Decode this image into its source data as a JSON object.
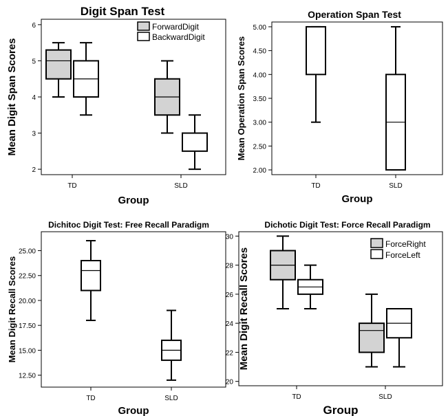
{
  "chart_data": [
    {
      "type": "boxplot",
      "title": "Digit Span Test",
      "xlabel": "Group",
      "ylabel": "Mean Digit Span Scores",
      "categories": [
        "TD",
        "SLD"
      ],
      "ylim": [
        1.85,
        6.15
      ],
      "yticks": [
        "2",
        "3",
        "4",
        "5",
        "6"
      ],
      "legend_position": "top-right",
      "series": [
        {
          "name": "ForwardDigit",
          "color": "#d3d3d3",
          "boxes": [
            {
              "min": 4,
              "q1": 4.5,
              "median": 5,
              "q3": 5.3,
              "max": 5.5
            },
            {
              "min": 3,
              "q1": 3.5,
              "median": 4,
              "q3": 4.5,
              "max": 5
            }
          ]
        },
        {
          "name": "BackwardDigit",
          "color": "#ffffff",
          "boxes": [
            {
              "min": 3.5,
              "q1": 4,
              "median": 4.5,
              "q3": 5,
              "max": 5.5
            },
            {
              "min": 2,
              "q1": 2.5,
              "median": 2.5,
              "q3": 3,
              "max": 3.5
            }
          ]
        }
      ]
    },
    {
      "type": "boxplot",
      "title": "Operation Span Test",
      "xlabel": "Group",
      "ylabel": "Mean Operation Span Scores",
      "categories": [
        "TD",
        "SLD"
      ],
      "ylim": [
        1.9,
        5.1
      ],
      "yticks": [
        "2.00",
        "2.50",
        "3.00",
        "3.50",
        "4.00",
        "4.50",
        "5.00"
      ],
      "series": [
        {
          "name": "",
          "color": "#ffffff",
          "boxes": [
            {
              "min": 3,
              "q1": 4,
              "median": 5,
              "q3": 5,
              "max": 5
            },
            {
              "min": 2,
              "q1": 2,
              "median": 3,
              "q3": 4,
              "max": 5
            }
          ]
        }
      ]
    },
    {
      "type": "boxplot",
      "title": "Dichitoc Digit Test: Free Recall Paradigm",
      "xlabel": "Group",
      "ylabel": "Mean Digit Recall Scores",
      "categories": [
        "TD",
        "SLD"
      ],
      "ylim": [
        11.3,
        26.9
      ],
      "yticks": [
        "12.50",
        "15.00",
        "17.50",
        "20.00",
        "22.50",
        "25.00"
      ],
      "series": [
        {
          "name": "",
          "color": "#ffffff",
          "boxes": [
            {
              "min": 18,
              "q1": 21,
              "median": 23,
              "q3": 24,
              "max": 26
            },
            {
              "min": 12,
              "q1": 14,
              "median": 15,
              "q3": 16,
              "max": 19
            }
          ]
        }
      ]
    },
    {
      "type": "boxplot",
      "title": "Dichotic Digit Test: Force Recall Paradigm",
      "xlabel": "Group",
      "ylabel": "Mean Digit Recall Scores",
      "categories": [
        "TD",
        "SLD"
      ],
      "ylim": [
        19.7,
        30.3
      ],
      "yticks": [
        "20",
        "22",
        "24",
        "26",
        "28",
        "30"
      ],
      "legend_position": "top-right",
      "series": [
        {
          "name": "ForceRight",
          "color": "#d3d3d3",
          "boxes": [
            {
              "min": 25,
              "q1": 27,
              "median": 28,
              "q3": 29,
              "max": 30
            },
            {
              "min": 21,
              "q1": 22,
              "median": 23.5,
              "q3": 24,
              "max": 26
            }
          ]
        },
        {
          "name": "ForceLeft",
          "color": "#ffffff",
          "boxes": [
            {
              "min": 25,
              "q1": 26,
              "median": 26.5,
              "q3": 27,
              "max": 28
            },
            {
              "min": 21,
              "q1": 23,
              "median": 24,
              "q3": 25,
              "max": 25
            }
          ]
        }
      ]
    }
  ]
}
